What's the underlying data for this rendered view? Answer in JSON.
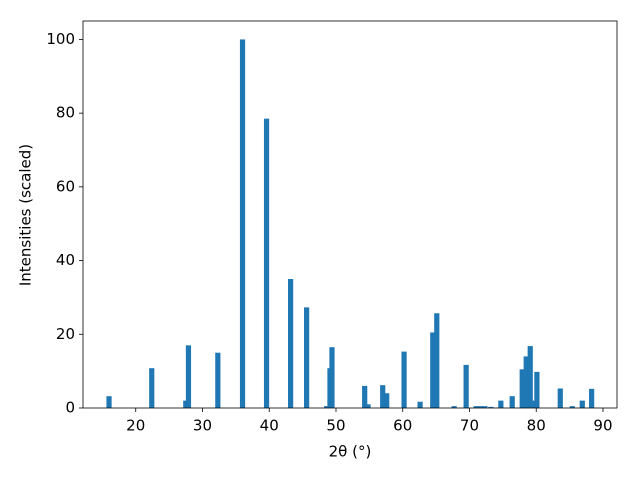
{
  "chart_data": {
    "type": "bar",
    "xlabel": "2θ (°)",
    "ylabel": "Intensities (scaled)",
    "x": [
      16.0,
      22.4,
      27.5,
      27.9,
      32.3,
      36.0,
      39.6,
      43.2,
      45.6,
      48.6,
      49.1,
      49.4,
      54.3,
      54.8,
      57.0,
      57.6,
      60.2,
      62.6,
      64.5,
      65.1,
      67.7,
      69.5,
      71.0,
      71.6,
      72.3,
      73.2,
      74.7,
      76.4,
      77.9,
      78.5,
      79.1,
      79.7,
      80.1,
      83.6,
      85.4,
      86.9,
      88.3
    ],
    "values": [
      3.2,
      10.8,
      2,
      17,
      15,
      100,
      78.5,
      35,
      27.3,
      0.5,
      10.8,
      16.5,
      6,
      1,
      6.2,
      4,
      15.3,
      1.7,
      20.5,
      25.7,
      0.5,
      11.7,
      0.5,
      0.5,
      0.5,
      0.3,
      2,
      3.2,
      10.5,
      14,
      16.8,
      2,
      9.8,
      5.3,
      0.5,
      2,
      5.2
    ],
    "color": "#1f77b4",
    "xlim": [
      12.1,
      92.1
    ],
    "xticks": [
      20,
      30,
      40,
      50,
      60,
      70,
      80,
      90
    ],
    "ylim": [
      0,
      105
    ],
    "yticks": [
      0,
      20,
      40,
      60,
      80,
      100
    ]
  }
}
